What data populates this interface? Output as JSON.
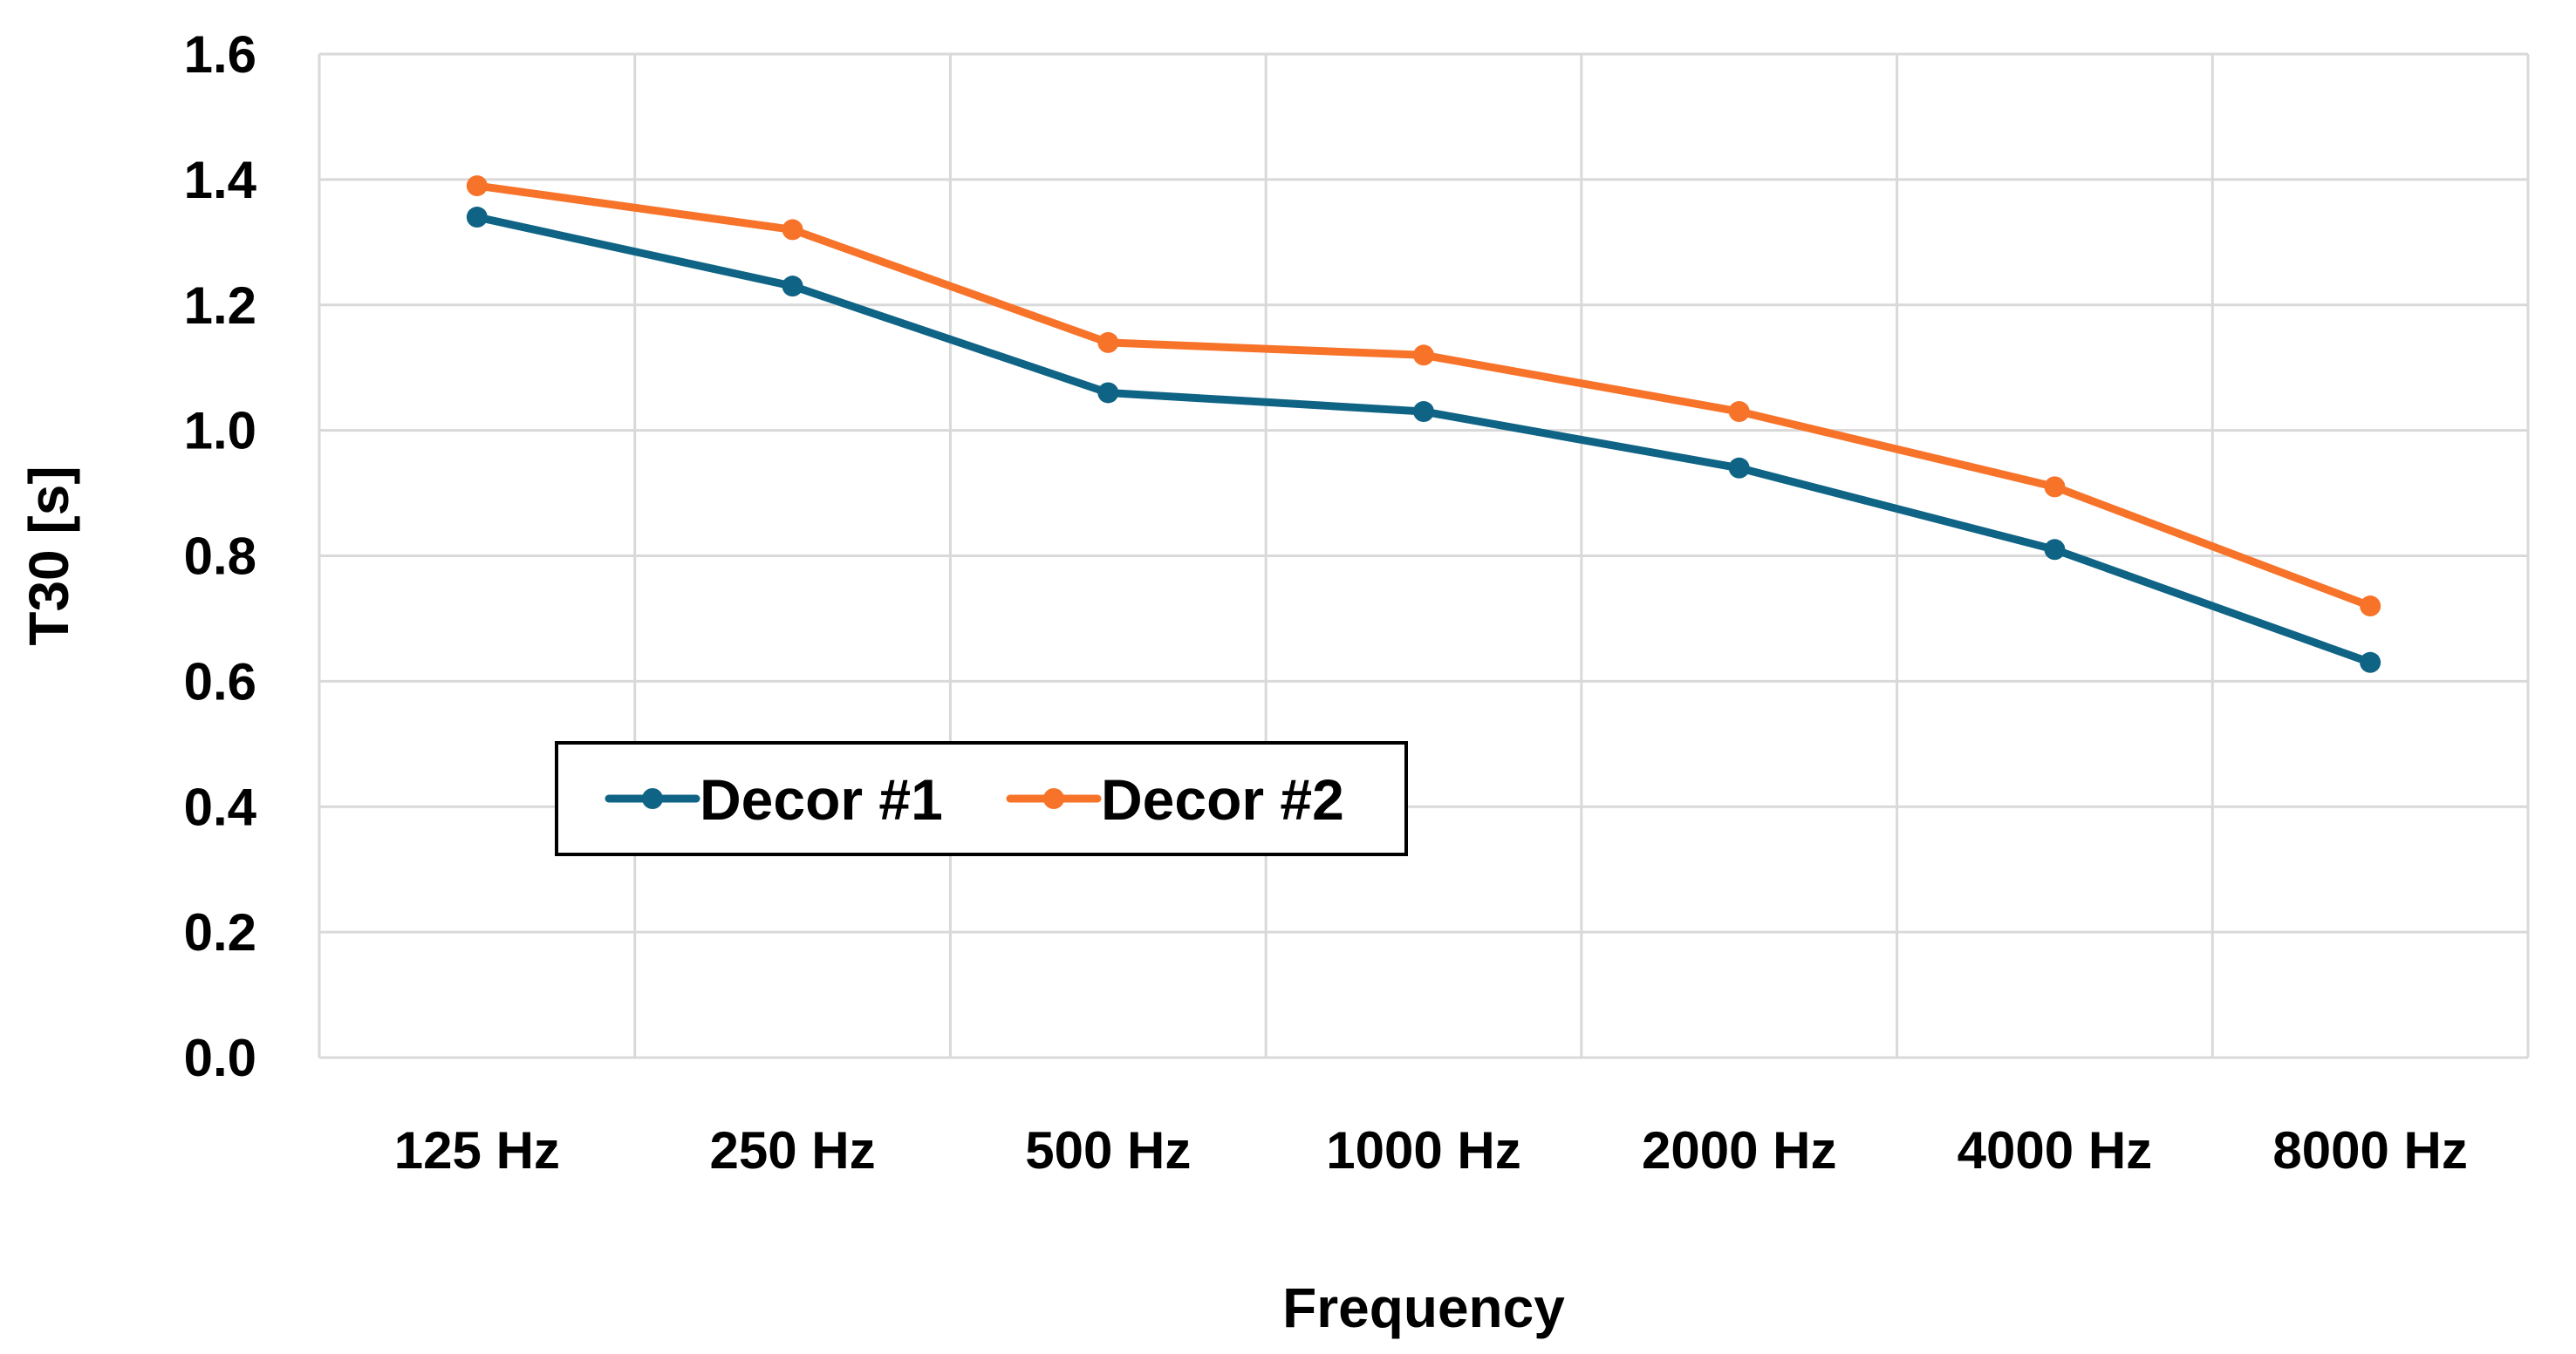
{
  "chart_data": {
    "type": "line",
    "title": "",
    "xlabel": "Frequency",
    "ylabel": "T30 [s]",
    "categories": [
      "125 Hz",
      "250 Hz",
      "500 Hz",
      "1000 Hz",
      "2000 Hz",
      "4000 Hz",
      "8000 Hz"
    ],
    "ylim": [
      0.0,
      1.6
    ],
    "yticks": [
      "0.0",
      "0.2",
      "0.4",
      "0.6",
      "0.8",
      "1.0",
      "1.2",
      "1.4",
      "1.6"
    ],
    "grid": true,
    "legend_position": "left-center",
    "series": [
      {
        "name": "Decor #1",
        "color": "#0f6384",
        "values": [
          1.34,
          1.23,
          1.06,
          1.03,
          0.94,
          0.81,
          0.63
        ]
      },
      {
        "name": "Decor #2",
        "color": "#f8732a",
        "values": [
          1.39,
          1.32,
          1.14,
          1.12,
          1.03,
          0.91,
          0.72
        ]
      }
    ]
  }
}
